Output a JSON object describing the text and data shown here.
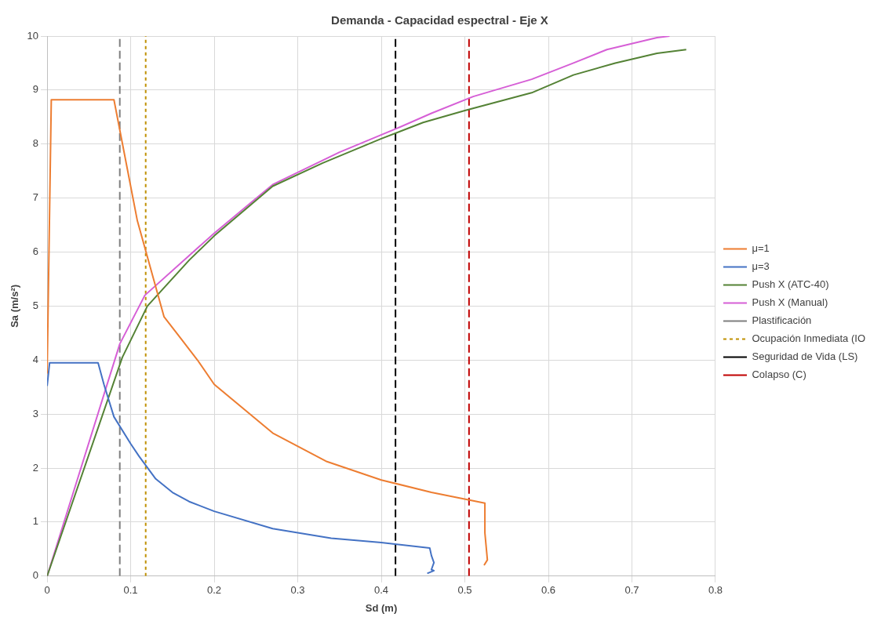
{
  "chart_data": {
    "type": "line",
    "title": "Demanda - Capacidad espectral - Eje X",
    "xlabel": "Sd (m)",
    "ylabel": "Sa (m/s²)",
    "xlim": [
      0,
      0.8
    ],
    "xticks": [
      0,
      0.1,
      0.2,
      0.3,
      0.4,
      0.5,
      0.6,
      0.7,
      0.8
    ],
    "ylim": [
      0,
      10
    ],
    "yticks": [
      0,
      1,
      2,
      3,
      4,
      5,
      6,
      7,
      8,
      9,
      10
    ],
    "grid": true,
    "legend": "right",
    "marker": "none",
    "series": [
      {
        "name": "μ=1",
        "color": "#ed7d31",
        "line_style": "solid",
        "x": [
          0,
          0.005,
          0.08,
          0.108,
          0.14,
          0.16,
          0.18,
          0.2,
          0.27,
          0.335,
          0.4,
          0.46,
          0.524,
          0.524,
          0.527,
          0.523
        ],
        "values": [
          3.75,
          8.82,
          8.82,
          6.58,
          4.8,
          4.4,
          4.0,
          3.55,
          2.65,
          2.12,
          1.78,
          1.55,
          1.35,
          0.8,
          0.3,
          0.2
        ]
      },
      {
        "name": "μ=3",
        "color": "#4472c4",
        "line_style": "solid",
        "x": [
          0,
          0.003,
          0.061,
          0.068,
          0.08,
          0.1,
          0.11,
          0.13,
          0.15,
          0.17,
          0.2,
          0.27,
          0.34,
          0.4,
          0.458,
          0.46,
          0.463,
          0.46,
          0.463,
          0.455
        ],
        "values": [
          3.52,
          3.95,
          3.95,
          3.55,
          2.95,
          2.45,
          2.22,
          1.8,
          1.55,
          1.38,
          1.2,
          0.88,
          0.7,
          0.62,
          0.52,
          0.38,
          0.25,
          0.12,
          0.1,
          0.05
        ]
      },
      {
        "name": "Push X (ATC-40)",
        "color": "#548235",
        "line_style": "solid",
        "x": [
          0,
          0.09,
          0.12,
          0.17,
          0.2,
          0.27,
          0.33,
          0.4,
          0.45,
          0.5,
          0.58,
          0.63,
          0.68,
          0.73,
          0.765
        ],
        "values": [
          0,
          4.05,
          5.0,
          5.85,
          6.3,
          7.22,
          7.65,
          8.1,
          8.4,
          8.62,
          8.95,
          9.28,
          9.5,
          9.68,
          9.75
        ]
      },
      {
        "name": "Push X (Manual)",
        "color": "#d65fd6",
        "line_style": "solid",
        "x": [
          0,
          0.087,
          0.117,
          0.2,
          0.27,
          0.35,
          0.42,
          0.46,
          0.51,
          0.58,
          0.63,
          0.67,
          0.73,
          0.745
        ],
        "values": [
          0,
          4.3,
          5.2,
          6.35,
          7.25,
          7.85,
          8.3,
          8.57,
          8.88,
          9.2,
          9.5,
          9.75,
          9.97,
          10.0
        ]
      },
      {
        "name": "Plastificación",
        "color": "#7f7f7f",
        "line_style": "dashed",
        "x": [
          0.087,
          0.087
        ],
        "values": [
          0,
          10
        ]
      },
      {
        "name": "Ocupación Inmediata (IO",
        "color": "#bf9000",
        "line_style": "dotted",
        "x": [
          0.118,
          0.118
        ],
        "values": [
          0,
          10
        ]
      },
      {
        "name": "Seguridad de Vida (LS)",
        "color": "#000000",
        "line_style": "dashed",
        "x": [
          0.417,
          0.417
        ],
        "values": [
          0,
          10
        ]
      },
      {
        "name": "Colapso (C)",
        "color": "#c00000",
        "line_style": "dashed",
        "x": [
          0.505,
          0.505
        ],
        "values": [
          0,
          10
        ]
      }
    ]
  }
}
